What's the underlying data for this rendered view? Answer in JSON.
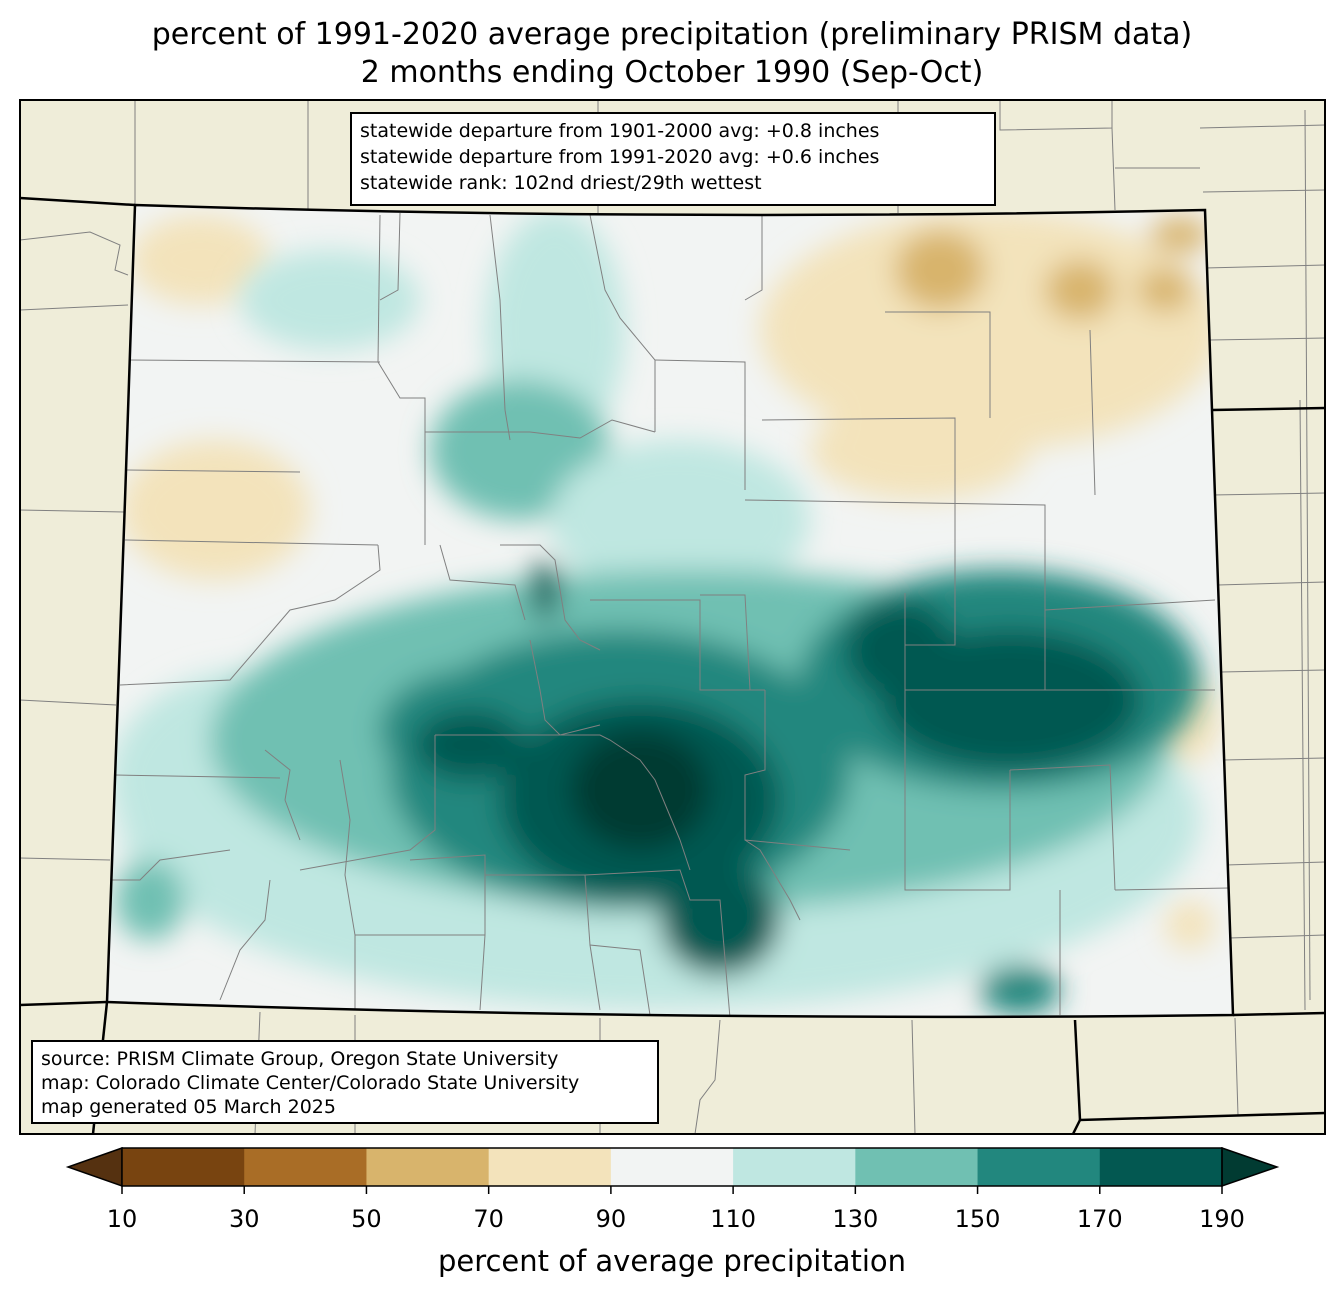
{
  "title": {
    "line1": "percent of 1991-2020 average precipitation (preliminary PRISM data)",
    "line2": "2 months ending October 1990 (Sep-Oct)"
  },
  "stats_box": {
    "line1": "statewide departure from 1901-2000 avg: +0.8 inches",
    "line2": "statewide departure from 1991-2020 avg: +0.6 inches",
    "line3": "statewide rank: 102nd driest/29th wettest"
  },
  "source_box": {
    "line1": "source: PRISM Climate Group, Oregon State University",
    "line2": "map: Colorado Climate Center/Colorado State University",
    "line3": "map generated 05 March 2025"
  },
  "colorbar": {
    "label": "percent of average precipitation",
    "ticks": [
      "10",
      "30",
      "50",
      "70",
      "90",
      "110",
      "130",
      "150",
      "170",
      "190"
    ],
    "colors": [
      "#784410",
      "#a96d26",
      "#d8b46c",
      "#f3e3bb",
      "#f2f4f3",
      "#bfe7e1",
      "#70c0b2",
      "#22877e",
      "#035851"
    ],
    "under_color": "#553110",
    "over_color": "#013b32"
  },
  "map_colors": {
    "background": "#efedd9",
    "state_border": "#000000",
    "county_border": "#808080"
  }
}
